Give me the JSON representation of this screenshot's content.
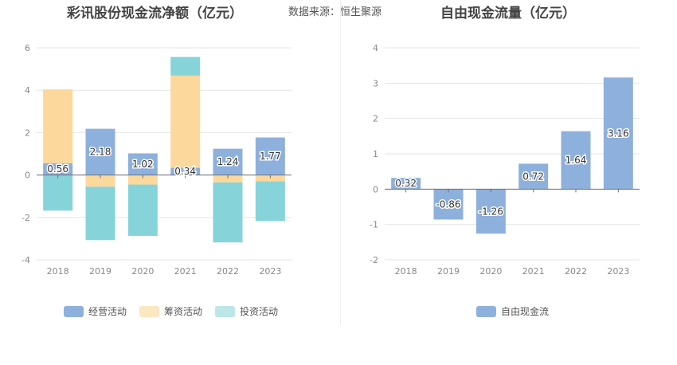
{
  "header": {
    "left_title": "彩讯股份现金流净额（亿元）",
    "source": "数据来源：恒生聚源",
    "right_title": "自由现金流量（亿元）"
  },
  "colors": {
    "operating": "#8eb0dc",
    "financing": "#fdd89c",
    "investing": "#86d4da",
    "free_cf": "#8eb0dc",
    "legend_financing": "#fde6c2",
    "legend_investing": "#bde6e9"
  },
  "chart_data": [
    {
      "type": "bar",
      "stacked": true,
      "title": "彩讯股份现金流净额（亿元）",
      "categories": [
        "2018",
        "2019",
        "2020",
        "2021",
        "2022",
        "2023"
      ],
      "ylim": [
        -4,
        6
      ],
      "yticks": [
        -4,
        -2,
        0,
        2,
        4,
        6
      ],
      "grid": true,
      "legend_position": "bottom",
      "series": [
        {
          "name": "经营活动",
          "values": [
            0.56,
            2.18,
            1.02,
            0.34,
            1.24,
            1.77
          ],
          "labels": [
            "0.56",
            "2.18",
            "1.02",
            "0.34",
            "1.24",
            "1.77"
          ]
        },
        {
          "name": "筹资活动",
          "values": [
            3.48,
            -0.55,
            -0.45,
            4.35,
            -0.35,
            -0.3
          ]
        },
        {
          "name": "投资活动",
          "values": [
            -1.68,
            -2.52,
            -2.42,
            0.88,
            -2.83,
            -1.87
          ]
        }
      ]
    },
    {
      "type": "bar",
      "title": "自由现金流量（亿元）",
      "categories": [
        "2018",
        "2019",
        "2020",
        "2021",
        "2022",
        "2023"
      ],
      "ylim": [
        -2,
        4
      ],
      "yticks": [
        -2,
        -1,
        0,
        1,
        2,
        3,
        4
      ],
      "grid": true,
      "legend_position": "bottom",
      "series": [
        {
          "name": "自由现金流",
          "values": [
            0.32,
            -0.86,
            -1.26,
            0.72,
            1.64,
            3.16
          ],
          "labels": [
            "0.32",
            "-0.86",
            "-1.26",
            "0.72",
            "1.64",
            "3.16"
          ]
        }
      ]
    }
  ]
}
